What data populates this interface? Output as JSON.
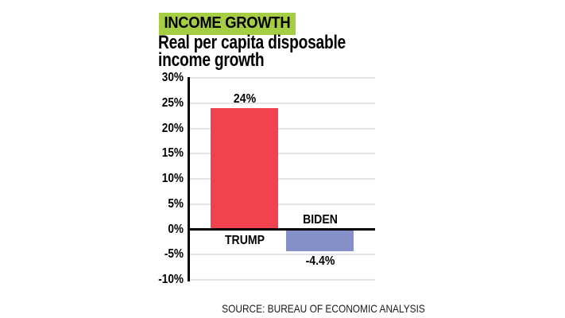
{
  "header": {
    "kicker": "INCOME GROWTH",
    "title_lines": [
      "Real per capita disposable",
      "income growth"
    ]
  },
  "footer": {
    "source": "SOURCE: BUREAU OF ECONOMIC ANALYSIS"
  },
  "colors": {
    "kicker_bg": "#a6ce45",
    "kicker_text": "#000000",
    "trump_bar": "#f0424f",
    "biden_bar": "#8590c9",
    "grid": "#e4e4e4",
    "axis": "#000000",
    "source_text": "#1a1a1a"
  },
  "chart_data": {
    "type": "bar",
    "title": "Real per capita disposable income growth",
    "categories": [
      "TRUMP",
      "BIDEN"
    ],
    "values": [
      24,
      -4.4
    ],
    "value_labels": [
      "24%",
      "-4.4%"
    ],
    "series_colors": [
      "#f0424f",
      "#8590c9"
    ],
    "xlabel": "",
    "ylabel": "",
    "ylim": [
      -10,
      30
    ],
    "ytick_step": 5,
    "ytick_labels": [
      "30%",
      "25%",
      "20%",
      "15%",
      "10%",
      "5%",
      "0%",
      "-5%",
      "-10%"
    ],
    "grid": true,
    "legend": false,
    "baseline": 0,
    "source": "SOURCE: BUREAU OF ECONOMIC ANALYSIS"
  }
}
